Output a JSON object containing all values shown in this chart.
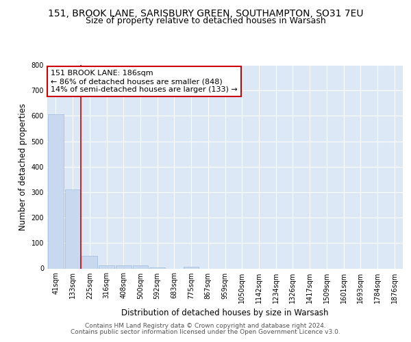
{
  "title_line1": "151, BROOK LANE, SARISBURY GREEN, SOUTHAMPTON, SO31 7EU",
  "title_line2": "Size of property relative to detached houses in Warsash",
  "xlabel": "Distribution of detached houses by size in Warsash",
  "ylabel": "Number of detached properties",
  "bar_color": "#c8d8ee",
  "bar_edge_color": "#a0bcd8",
  "bin_labels": [
    "41sqm",
    "133sqm",
    "225sqm",
    "316sqm",
    "408sqm",
    "500sqm",
    "592sqm",
    "683sqm",
    "775sqm",
    "867sqm",
    "959sqm",
    "1050sqm",
    "1142sqm",
    "1234sqm",
    "1326sqm",
    "1417sqm",
    "1509sqm",
    "1601sqm",
    "1693sqm",
    "1784sqm",
    "1876sqm"
  ],
  "bar_values": [
    607,
    310,
    50,
    12,
    13,
    13,
    5,
    0,
    8,
    0,
    0,
    0,
    0,
    0,
    0,
    0,
    0,
    0,
    0,
    0,
    0
  ],
  "ylim": [
    0,
    800
  ],
  "yticks": [
    0,
    100,
    200,
    300,
    400,
    500,
    600,
    700,
    800
  ],
  "vline_x": 1.5,
  "annotation_text": "151 BROOK LANE: 186sqm\n← 86% of detached houses are smaller (848)\n14% of semi-detached houses are larger (133) →",
  "annotation_box_color": "white",
  "annotation_box_edge_color": "#cc0000",
  "vline_color": "#cc0000",
  "footer_line1": "Contains HM Land Registry data © Crown copyright and database right 2024.",
  "footer_line2": "Contains public sector information licensed under the Open Government Licence v3.0.",
  "fig_bg_color": "#ffffff",
  "plot_bg_color": "#dce8f5",
  "grid_color": "#ffffff",
  "title_fontsize": 10,
  "subtitle_fontsize": 9,
  "label_fontsize": 8.5,
  "tick_fontsize": 7,
  "annot_fontsize": 8,
  "footer_fontsize": 6.5
}
